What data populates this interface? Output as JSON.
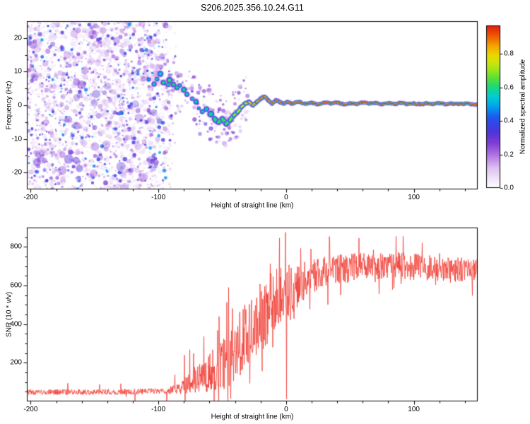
{
  "title": "S206.2025.356.10.24.G11",
  "chart_data": [
    {
      "type": "heatmap",
      "name": "spectrogram",
      "title": "S206.2025.356.10.24.G11",
      "xlabel": "Height of straight line (km)",
      "ylabel": "Frequency (Hz)",
      "xlim": [
        -203,
        150
      ],
      "ylim": [
        -25,
        25
      ],
      "xtick_values": [
        -200,
        -100,
        0,
        100
      ],
      "xtick_labels": [
        "-200",
        "-100",
        "0",
        "100"
      ],
      "ytick_values": [
        -20,
        -10,
        0,
        10,
        20
      ],
      "ytick_labels": [
        "-20",
        "-10",
        "0",
        "10",
        "20"
      ],
      "colorbar": {
        "label": "Normalized spectral amplitude",
        "tick_values": [
          0.0,
          0.2,
          0.4,
          0.6,
          0.8
        ],
        "tick_labels": [
          "0.0",
          "0.2",
          "0.4",
          "0.6",
          "0.8"
        ],
        "vmin": 0,
        "vmax": 0.97
      },
      "colormap": [
        [
          0.0,
          "#ffffff"
        ],
        [
          0.05,
          "#f2e7fa"
        ],
        [
          0.12,
          "#dcc0f2"
        ],
        [
          0.2,
          "#b070e0"
        ],
        [
          0.27,
          "#7d3cd4"
        ],
        [
          0.34,
          "#4a34dc"
        ],
        [
          0.42,
          "#2255ee"
        ],
        [
          0.48,
          "#009cf0"
        ],
        [
          0.54,
          "#00ccd8"
        ],
        [
          0.6,
          "#18d880"
        ],
        [
          0.66,
          "#60e030"
        ],
        [
          0.72,
          "#b0e818"
        ],
        [
          0.78,
          "#e8e000"
        ],
        [
          0.84,
          "#f4ae00"
        ],
        [
          0.9,
          "#f06000"
        ],
        [
          0.96,
          "#e42414"
        ],
        [
          1.0,
          "#cc1010"
        ]
      ],
      "noise_region": {
        "x_range": [
          -203,
          -85
        ],
        "amplitude_range": [
          0.05,
          0.45
        ],
        "description": "broadband purple speckle noise below straight-line height ~ -100 km, full frequency span"
      },
      "signal_trace": [
        [
          -107,
          8.0,
          0.5,
          4.5
        ],
        [
          -104,
          6.5,
          0.55,
          5.0
        ],
        [
          -101,
          7.5,
          0.6,
          5.5
        ],
        [
          -98,
          9.0,
          0.55,
          4.5
        ],
        [
          -96,
          7.0,
          0.6,
          5.5
        ],
        [
          -93,
          6.0,
          0.6,
          5.0
        ],
        [
          -91,
          7.5,
          0.65,
          5.5
        ],
        [
          -88,
          6.5,
          0.6,
          5.0
        ],
        [
          -86,
          5.0,
          0.6,
          5.0
        ],
        [
          -83,
          6.0,
          0.55,
          4.5
        ],
        [
          -80,
          4.5,
          0.6,
          5.0
        ],
        [
          -77,
          3.5,
          0.55,
          4.5
        ],
        [
          -74,
          2.0,
          0.55,
          4.5
        ],
        [
          -71,
          1.0,
          0.55,
          5.0
        ],
        [
          -68,
          -0.5,
          0.5,
          4.0
        ],
        [
          -65,
          -2.0,
          0.55,
          4.5
        ],
        [
          -62,
          -1.0,
          0.55,
          4.5
        ],
        [
          -59,
          -2.5,
          0.6,
          5.0
        ],
        [
          -56,
          -4.0,
          0.6,
          5.0
        ],
        [
          -53,
          -5.0,
          0.62,
          5.0
        ],
        [
          -50,
          -4.0,
          0.62,
          4.5
        ],
        [
          -47,
          -5.5,
          0.62,
          5.0
        ],
        [
          -44,
          -4.5,
          0.65,
          4.5
        ],
        [
          -41,
          -3.0,
          0.68,
          4.5
        ],
        [
          -38,
          -2.0,
          0.72,
          4.0
        ],
        [
          -35,
          -0.5,
          0.75,
          4.0
        ],
        [
          -32,
          0.5,
          0.8,
          4.0
        ],
        [
          -29,
          1.0,
          0.82,
          3.8
        ],
        [
          -26,
          0.0,
          0.85,
          3.8
        ],
        [
          -23,
          1.0,
          0.88,
          3.6
        ],
        [
          -20,
          2.0,
          0.9,
          3.6
        ],
        [
          -17,
          2.5,
          0.9,
          3.6
        ],
        [
          -14,
          1.5,
          0.92,
          3.5
        ],
        [
          -11,
          0.5,
          0.92,
          3.5
        ],
        [
          -8,
          1.5,
          0.94,
          3.5
        ],
        [
          -5,
          1.0,
          0.94,
          3.5
        ],
        [
          -2,
          0.5,
          0.95,
          3.4
        ],
        [
          1,
          1.0,
          0.95,
          3.4
        ],
        [
          5,
          0.5,
          0.95,
          3.4
        ],
        [
          10,
          1.0,
          0.96,
          3.3
        ],
        [
          15,
          0.5,
          0.96,
          3.3
        ],
        [
          20,
          0.8,
          0.96,
          3.3
        ],
        [
          25,
          0.3,
          0.96,
          3.3
        ],
        [
          30,
          0.8,
          0.96,
          3.3
        ],
        [
          35,
          0.5,
          0.96,
          3.3
        ],
        [
          40,
          0.8,
          0.96,
          3.3
        ],
        [
          45,
          0.3,
          0.96,
          3.3
        ],
        [
          50,
          0.6,
          0.96,
          3.3
        ],
        [
          55,
          0.4,
          0.96,
          3.3
        ],
        [
          60,
          0.8,
          0.96,
          3.3
        ],
        [
          65,
          0.5,
          0.96,
          3.3
        ],
        [
          70,
          0.7,
          0.96,
          3.3
        ],
        [
          75,
          0.3,
          0.96,
          3.3
        ],
        [
          80,
          0.6,
          0.96,
          3.3
        ],
        [
          85,
          0.4,
          0.96,
          3.3
        ],
        [
          90,
          0.7,
          0.96,
          3.3
        ],
        [
          95,
          0.4,
          0.96,
          3.3
        ],
        [
          100,
          0.6,
          0.96,
          3.3
        ],
        [
          105,
          0.3,
          0.96,
          3.3
        ],
        [
          110,
          0.6,
          0.96,
          3.3
        ],
        [
          115,
          0.4,
          0.96,
          3.3
        ],
        [
          120,
          0.6,
          0.96,
          3.3
        ],
        [
          125,
          0.3,
          0.96,
          3.3
        ],
        [
          130,
          0.5,
          0.96,
          3.3
        ],
        [
          135,
          0.4,
          0.96,
          3.3
        ],
        [
          140,
          0.5,
          0.96,
          3.3
        ],
        [
          145,
          0.3,
          0.96,
          3.3
        ],
        [
          150,
          0.4,
          0.96,
          3.3
        ]
      ]
    },
    {
      "type": "line",
      "name": "snr",
      "xlabel": "Height of straight line (km)",
      "ylabel": "SNR (10 * v/v)",
      "xlim": [
        -203,
        150
      ],
      "ylim": [
        0,
        900
      ],
      "xtick_values": [
        -200,
        -100,
        0,
        100
      ],
      "xtick_labels": [
        "-200",
        "-100",
        "0",
        "100"
      ],
      "ytick_values": [
        200,
        400,
        600,
        800
      ],
      "ytick_labels": [
        "200",
        "400",
        "600",
        "800"
      ],
      "line_color": "#f03b32",
      "envelope": [
        [
          -203,
          48,
          14,
          0.02,
          60
        ],
        [
          -160,
          48,
          14,
          0.02,
          60
        ],
        [
          -120,
          50,
          15,
          0.02,
          70
        ],
        [
          -100,
          52,
          16,
          0.03,
          80
        ],
        [
          -92,
          55,
          18,
          0.04,
          90
        ],
        [
          -85,
          65,
          30,
          0.06,
          120
        ],
        [
          -78,
          85,
          50,
          0.1,
          160
        ],
        [
          -72,
          110,
          70,
          0.12,
          180
        ],
        [
          -66,
          130,
          85,
          0.15,
          200
        ],
        [
          -60,
          150,
          100,
          0.15,
          220
        ],
        [
          -54,
          170,
          115,
          0.18,
          240
        ],
        [
          -48,
          200,
          135,
          0.2,
          260
        ],
        [
          -43,
          240,
          155,
          0.22,
          260
        ],
        [
          -38,
          280,
          170,
          0.22,
          260
        ],
        [
          -33,
          320,
          180,
          0.22,
          250
        ],
        [
          -28,
          360,
          185,
          0.22,
          240
        ],
        [
          -23,
          410,
          185,
          0.2,
          230
        ],
        [
          -18,
          450,
          180,
          0.2,
          220
        ],
        [
          -13,
          490,
          170,
          0.18,
          200
        ],
        [
          -8,
          530,
          160,
          0.16,
          190
        ],
        [
          -3,
          555,
          150,
          0.15,
          180
        ],
        [
          2,
          575,
          130,
          0.12,
          160
        ],
        [
          8,
          600,
          110,
          0.1,
          150
        ],
        [
          15,
          630,
          95,
          0.08,
          140
        ],
        [
          25,
          660,
          85,
          0.08,
          130
        ],
        [
          40,
          685,
          75,
          0.07,
          125
        ],
        [
          60,
          700,
          72,
          0.07,
          125
        ],
        [
          80,
          705,
          72,
          0.07,
          130
        ],
        [
          100,
          695,
          70,
          0.06,
          120
        ],
        [
          125,
          685,
          65,
          0.06,
          115
        ],
        [
          150,
          680,
          62,
          0.06,
          115
        ]
      ],
      "features": [
        [
          -45,
          590
        ],
        [
          -0.4,
          875
        ],
        [
          0.3,
          12
        ],
        [
          34,
          835
        ],
        [
          57,
          845
        ],
        [
          86,
          855
        ]
      ]
    }
  ]
}
